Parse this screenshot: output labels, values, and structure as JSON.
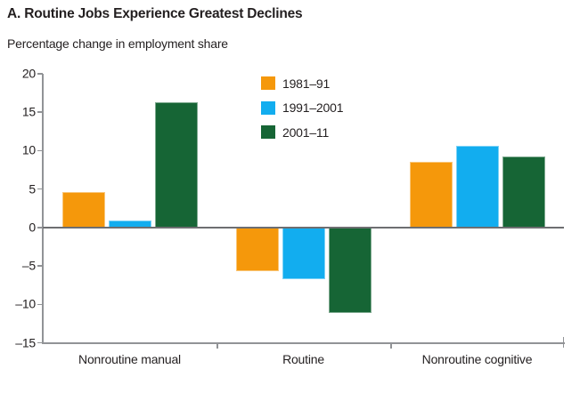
{
  "title": "A. Routine Jobs Experience Greatest Declines",
  "subtitle": "Percentage change in employment share",
  "chart_data": {
    "type": "bar",
    "title": "A. Routine Jobs Experience Greatest Declines",
    "subtitle": "Percentage change in employment share",
    "categories": [
      "Nonroutine manual",
      "Routine",
      "Nonroutine cognitive"
    ],
    "series": [
      {
        "name": "1981–91",
        "color": "#F5980B",
        "values": [
          4.6,
          -5.7,
          8.6
        ]
      },
      {
        "name": "1991–2001",
        "color": "#12ADEF",
        "values": [
          0.9,
          -6.7,
          10.6
        ]
      },
      {
        "name": "2001–11",
        "color": "#166535",
        "values": [
          16.3,
          -11.1,
          9.2
        ]
      }
    ],
    "xlabel": "",
    "ylabel": "Percentage change in employment share",
    "ylim": [
      -15,
      20
    ],
    "yticks": [
      20,
      15,
      10,
      5,
      0,
      -5,
      -10,
      -15
    ],
    "yticklabels": [
      "20",
      "15",
      "10",
      "5",
      "0",
      "–5",
      "–10",
      "–15"
    ],
    "grid": false,
    "legend_position": "inside-top-center"
  },
  "colors": {
    "axis": "#919396",
    "zero_line": "#6D6E71",
    "text": "#231F20"
  }
}
